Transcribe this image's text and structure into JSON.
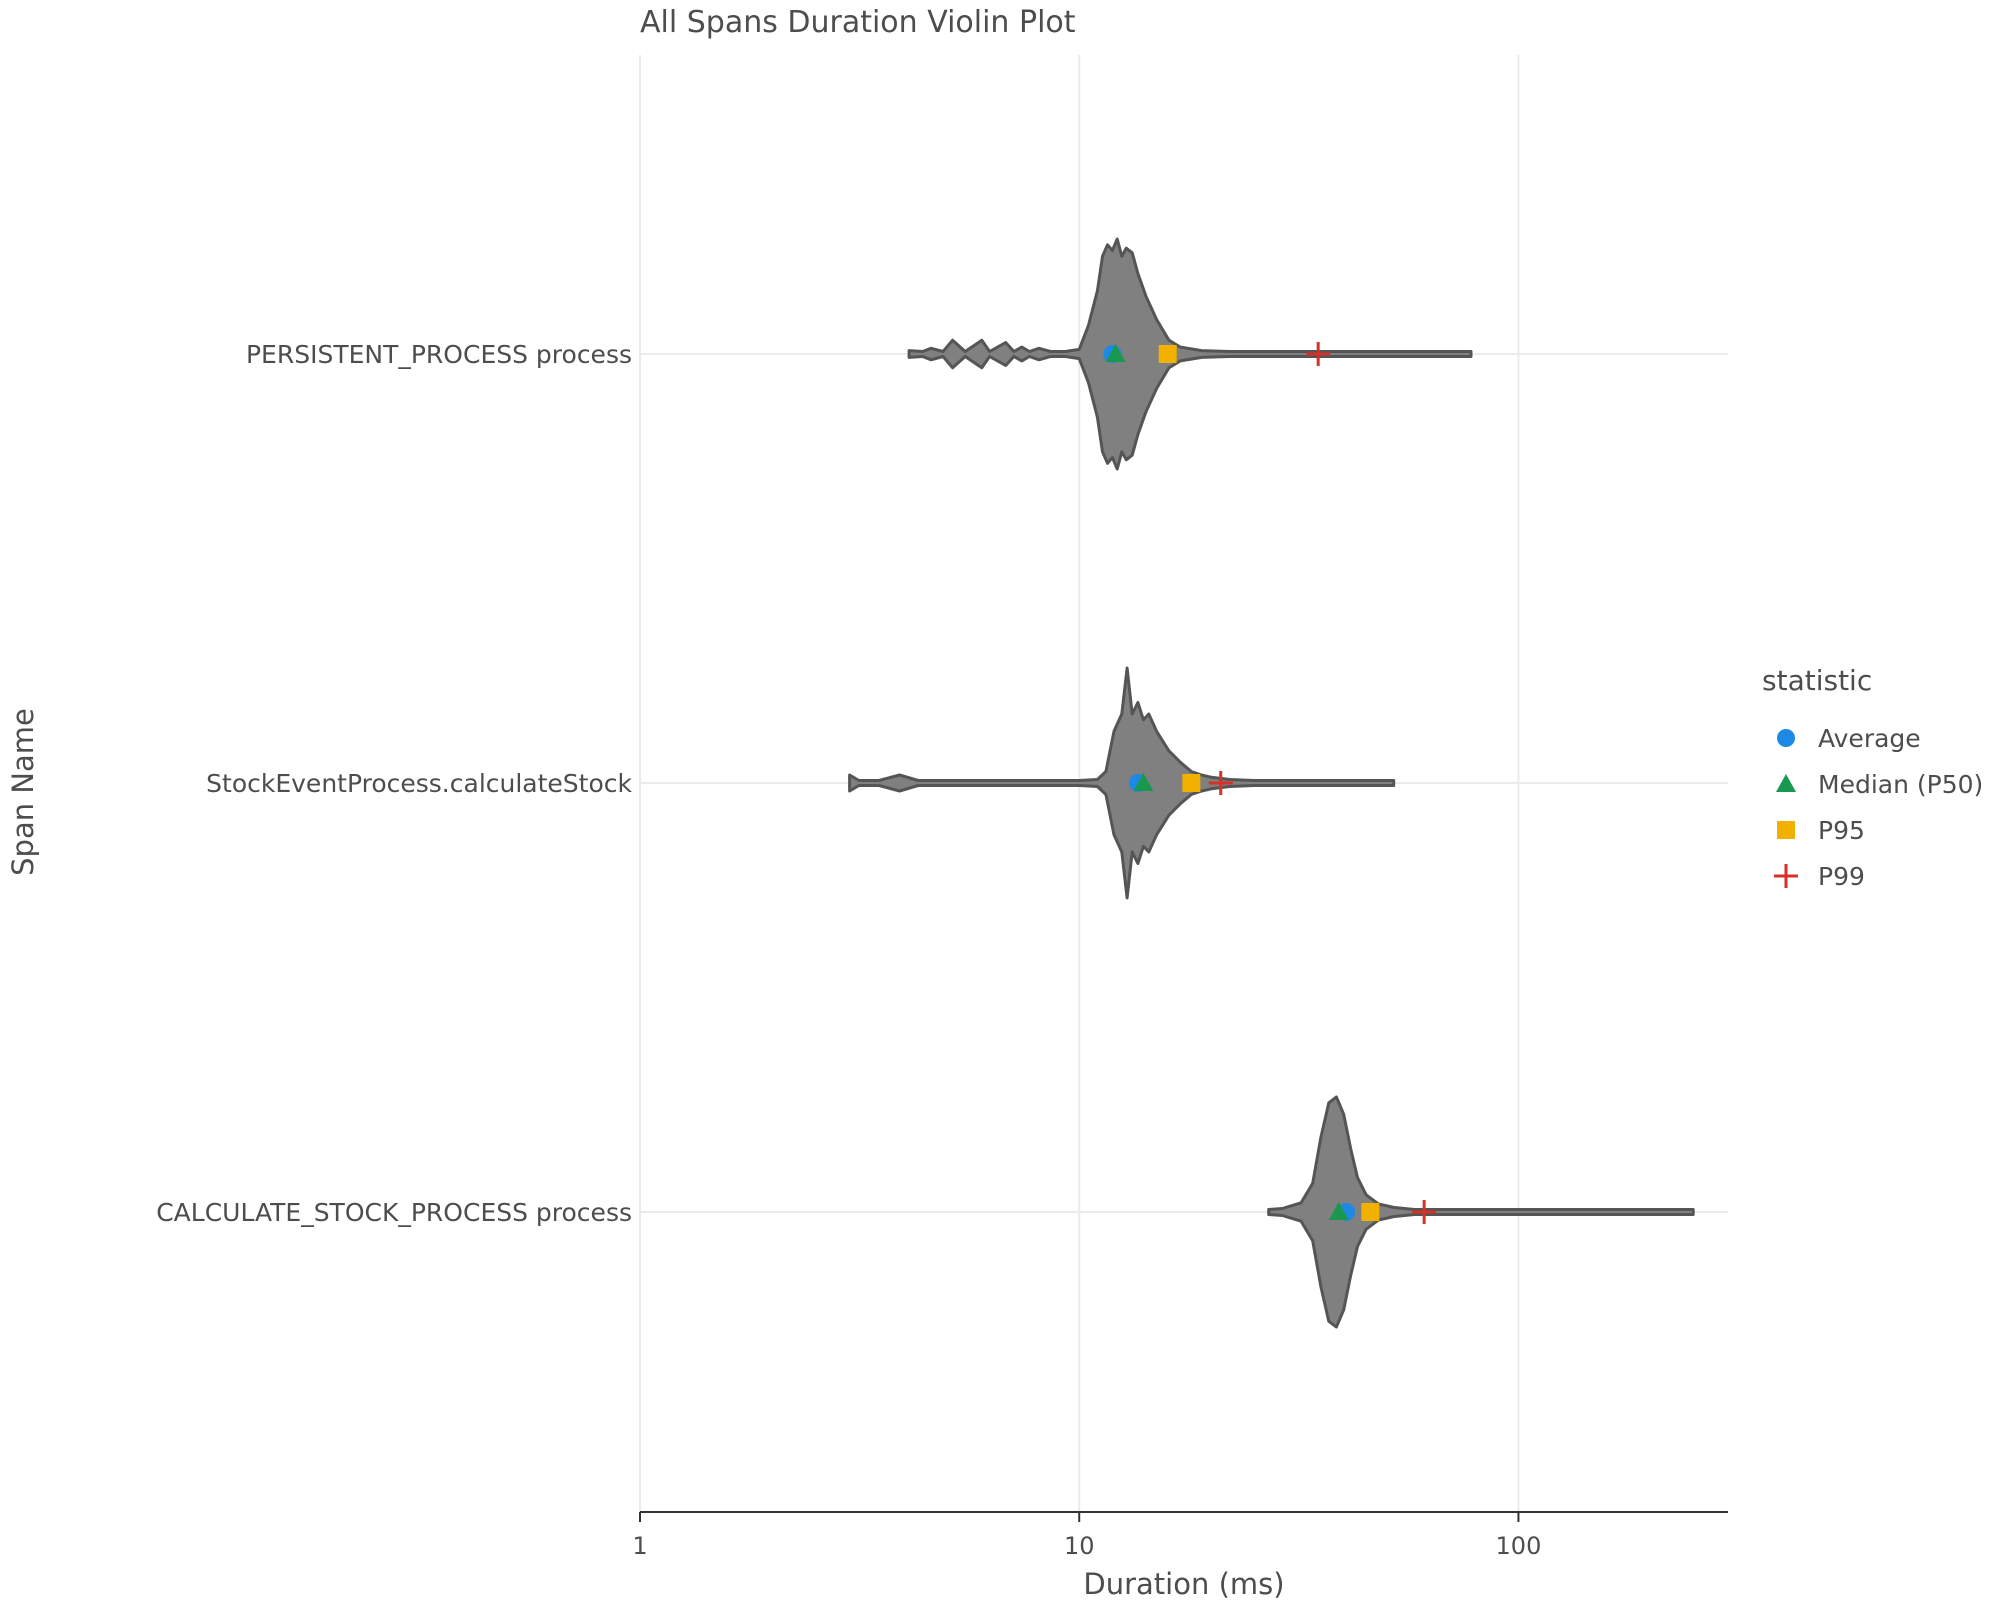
{
  "chart_data": {
    "type": "violin",
    "title": "All Spans Duration Violin Plot",
    "xlabel": "Duration (ms)",
    "ylabel": "Span Name",
    "x_scale": "log10",
    "xlim": [
      1,
      300
    ],
    "x_ticks": [
      {
        "value": 1,
        "label": "1"
      },
      {
        "value": 10,
        "label": "10"
      },
      {
        "value": 100,
        "label": "100"
      }
    ],
    "grid": true,
    "legend_title": "statistic",
    "legend_position": "right",
    "statistics": [
      {
        "key": "average",
        "name": "Average",
        "shape": "circle",
        "color": "#1e88e5"
      },
      {
        "key": "median",
        "name": "Median (P50)",
        "shape": "triangle",
        "color": "#1a9850"
      },
      {
        "key": "p95",
        "name": "P95",
        "shape": "square",
        "color": "#f2b000"
      },
      {
        "key": "p99",
        "name": "P99",
        "shape": "plus",
        "color": "#d73027"
      }
    ],
    "categories": [
      {
        "name": "PERSISTENT_PROCESS process",
        "stats": {
          "average": 11.9,
          "median": 12.1,
          "p95": 15.9,
          "p99": 35.0
        },
        "range": [
          4.1,
          78
        ],
        "density": [
          [
            4.1,
            0.03
          ],
          [
            4.4,
            0.01
          ],
          [
            4.6,
            0.05
          ],
          [
            4.9,
            0.01
          ],
          [
            5.15,
            0.12
          ],
          [
            5.5,
            0.01
          ],
          [
            6.0,
            0.12
          ],
          [
            6.25,
            0.01
          ],
          [
            6.8,
            0.1
          ],
          [
            7.1,
            0.01
          ],
          [
            7.4,
            0.06
          ],
          [
            7.7,
            0.01
          ],
          [
            8.1,
            0.05
          ],
          [
            8.6,
            0.015
          ],
          [
            9.3,
            0.02
          ],
          [
            10.0,
            0.04
          ],
          [
            10.5,
            0.25
          ],
          [
            11.0,
            0.55
          ],
          [
            11.3,
            0.85
          ],
          [
            11.6,
            0.95
          ],
          [
            11.9,
            0.9
          ],
          [
            12.2,
            1.0
          ],
          [
            12.5,
            0.85
          ],
          [
            12.8,
            0.92
          ],
          [
            13.2,
            0.88
          ],
          [
            13.6,
            0.7
          ],
          [
            14.2,
            0.5
          ],
          [
            15.0,
            0.3
          ],
          [
            16.0,
            0.12
          ],
          [
            17.0,
            0.06
          ],
          [
            19.0,
            0.03
          ],
          [
            22.0,
            0.02
          ],
          [
            26.0,
            0.01
          ],
          [
            32.0,
            0.01
          ],
          [
            40.0,
            0.008
          ],
          [
            50.0,
            0.006
          ],
          [
            60.0,
            0.005
          ],
          [
            78.0,
            0.003
          ]
        ]
      },
      {
        "name": "StockEventProcess.calculateStock",
        "stats": {
          "average": 13.6,
          "median": 14.0,
          "p95": 18.0,
          "p99": 21.0
        },
        "range": [
          3.0,
          52
        ],
        "density": [
          [
            3.0,
            0.07
          ],
          [
            3.15,
            0.01
          ],
          [
            3.5,
            0.01
          ],
          [
            3.9,
            0.07
          ],
          [
            4.3,
            0.01
          ],
          [
            5.0,
            0.01
          ],
          [
            6.0,
            0.008
          ],
          [
            8.0,
            0.008
          ],
          [
            10.0,
            0.008
          ],
          [
            11.0,
            0.03
          ],
          [
            11.5,
            0.1
          ],
          [
            12.0,
            0.45
          ],
          [
            12.5,
            0.6
          ],
          [
            12.85,
            1.0
          ],
          [
            13.2,
            0.6
          ],
          [
            13.6,
            0.7
          ],
          [
            14.0,
            0.55
          ],
          [
            14.4,
            0.6
          ],
          [
            15.0,
            0.45
          ],
          [
            16.0,
            0.28
          ],
          [
            17.0,
            0.18
          ],
          [
            18.0,
            0.1
          ],
          [
            19.0,
            0.07
          ],
          [
            20.0,
            0.05
          ],
          [
            22.0,
            0.03
          ],
          [
            25.0,
            0.01
          ],
          [
            30.0,
            0.01
          ],
          [
            40.0,
            0.008
          ],
          [
            52.0,
            0.004
          ]
        ]
      },
      {
        "name": "CALCULATE_STOCK_PROCESS process",
        "stats": {
          "average": 40.5,
          "median": 39.0,
          "p95": 46.0,
          "p99": 61.0
        },
        "range": [
          27,
          250
        ],
        "density": [
          [
            27.0,
            0.02
          ],
          [
            29.0,
            0.03
          ],
          [
            32.0,
            0.08
          ],
          [
            34.0,
            0.25
          ],
          [
            35.5,
            0.65
          ],
          [
            37.0,
            0.95
          ],
          [
            38.5,
            1.0
          ],
          [
            40.0,
            0.85
          ],
          [
            41.5,
            0.55
          ],
          [
            43.0,
            0.3
          ],
          [
            45.0,
            0.15
          ],
          [
            48.0,
            0.07
          ],
          [
            52.0,
            0.04
          ],
          [
            58.0,
            0.02
          ],
          [
            65.0,
            0.015
          ],
          [
            75.0,
            0.01
          ],
          [
            100.0,
            0.008
          ],
          [
            150.0,
            0.006
          ],
          [
            200.0,
            0.006
          ],
          [
            250.0,
            0.004
          ]
        ]
      }
    ]
  }
}
